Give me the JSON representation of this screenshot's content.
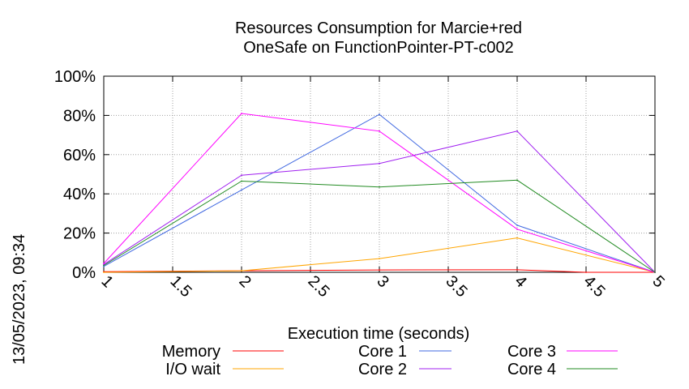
{
  "chart_data": {
    "type": "line",
    "title": [
      "Resources Consumption for Marcie+red",
      "OneSafe on FunctionPointer-PT-c002"
    ],
    "xlabel": "Execution time (seconds)",
    "ylabel": "",
    "xlim": [
      1,
      5
    ],
    "ylim": [
      0,
      100
    ],
    "x_ticks": [
      1,
      1.5,
      2,
      2.5,
      3,
      3.5,
      4,
      4.5,
      5
    ],
    "x_tick_labels": [
      "1",
      "1.5",
      "2",
      "2.5",
      "3",
      "3.5",
      "4",
      "4.5",
      "5"
    ],
    "y_ticks": [
      0,
      20,
      40,
      60,
      80,
      100
    ],
    "y_tick_labels": [
      "0%",
      "20%",
      "40%",
      "60%",
      "80%",
      "100%"
    ],
    "grid": true,
    "legend_position": "bottom",
    "timestamp": "13/05/2023, 09:34",
    "series": [
      {
        "name": "Memory",
        "color": "#ff0000",
        "x": [
          1,
          2,
          3,
          4,
          4.5,
          5
        ],
        "values": [
          0.3,
          0.8,
          1.2,
          1.3,
          0,
          0
        ]
      },
      {
        "name": "I/O wait",
        "color": "#ffa500",
        "x": [
          1,
          2,
          3,
          4,
          5
        ],
        "values": [
          0,
          0.8,
          7,
          17.5,
          0
        ]
      },
      {
        "name": "Core 1",
        "color": "#4169e1",
        "x": [
          1,
          2,
          3,
          4,
          5
        ],
        "values": [
          3,
          42,
          80.5,
          24,
          0
        ]
      },
      {
        "name": "Core 2",
        "color": "#a020f0",
        "x": [
          1,
          2,
          3,
          4,
          5
        ],
        "values": [
          4,
          49.5,
          55.5,
          72,
          0
        ]
      },
      {
        "name": "Core 3",
        "color": "#ff00ff",
        "x": [
          1,
          2,
          3,
          4,
          5
        ],
        "values": [
          4.5,
          81,
          72,
          22,
          0
        ]
      },
      {
        "name": "Core 4",
        "color": "#228b22",
        "x": [
          1,
          2,
          3,
          4,
          5
        ],
        "values": [
          3.5,
          46.5,
          43.5,
          47,
          0
        ]
      }
    ]
  }
}
